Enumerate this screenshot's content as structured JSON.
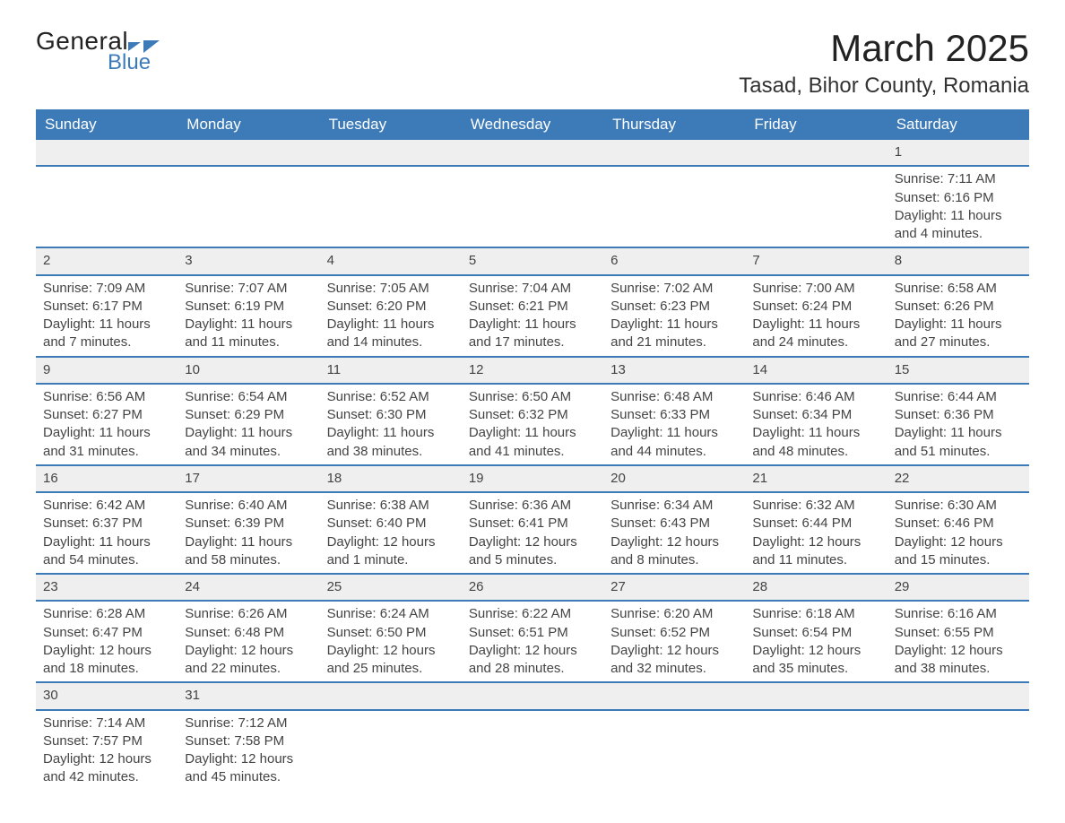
{
  "logo": {
    "text_general": "General",
    "text_blue": "Blue",
    "color_blue": "#3d7ab8"
  },
  "title": "March 2025",
  "location": "Tasad, Bihor County, Romania",
  "day_headers": [
    "Sunday",
    "Monday",
    "Tuesday",
    "Wednesday",
    "Thursday",
    "Friday",
    "Saturday"
  ],
  "weeks": [
    {
      "nums": [
        "",
        "",
        "",
        "",
        "",
        "",
        "1"
      ],
      "details": [
        "",
        "",
        "",
        "",
        "",
        "",
        "Sunrise: 7:11 AM\nSunset: 6:16 PM\nDaylight: 11 hours and 4 minutes."
      ]
    },
    {
      "nums": [
        "2",
        "3",
        "4",
        "5",
        "6",
        "7",
        "8"
      ],
      "details": [
        "Sunrise: 7:09 AM\nSunset: 6:17 PM\nDaylight: 11 hours and 7 minutes.",
        "Sunrise: 7:07 AM\nSunset: 6:19 PM\nDaylight: 11 hours and 11 minutes.",
        "Sunrise: 7:05 AM\nSunset: 6:20 PM\nDaylight: 11 hours and 14 minutes.",
        "Sunrise: 7:04 AM\nSunset: 6:21 PM\nDaylight: 11 hours and 17 minutes.",
        "Sunrise: 7:02 AM\nSunset: 6:23 PM\nDaylight: 11 hours and 21 minutes.",
        "Sunrise: 7:00 AM\nSunset: 6:24 PM\nDaylight: 11 hours and 24 minutes.",
        "Sunrise: 6:58 AM\nSunset: 6:26 PM\nDaylight: 11 hours and 27 minutes."
      ]
    },
    {
      "nums": [
        "9",
        "10",
        "11",
        "12",
        "13",
        "14",
        "15"
      ],
      "details": [
        "Sunrise: 6:56 AM\nSunset: 6:27 PM\nDaylight: 11 hours and 31 minutes.",
        "Sunrise: 6:54 AM\nSunset: 6:29 PM\nDaylight: 11 hours and 34 minutes.",
        "Sunrise: 6:52 AM\nSunset: 6:30 PM\nDaylight: 11 hours and 38 minutes.",
        "Sunrise: 6:50 AM\nSunset: 6:32 PM\nDaylight: 11 hours and 41 minutes.",
        "Sunrise: 6:48 AM\nSunset: 6:33 PM\nDaylight: 11 hours and 44 minutes.",
        "Sunrise: 6:46 AM\nSunset: 6:34 PM\nDaylight: 11 hours and 48 minutes.",
        "Sunrise: 6:44 AM\nSunset: 6:36 PM\nDaylight: 11 hours and 51 minutes."
      ]
    },
    {
      "nums": [
        "16",
        "17",
        "18",
        "19",
        "20",
        "21",
        "22"
      ],
      "details": [
        "Sunrise: 6:42 AM\nSunset: 6:37 PM\nDaylight: 11 hours and 54 minutes.",
        "Sunrise: 6:40 AM\nSunset: 6:39 PM\nDaylight: 11 hours and 58 minutes.",
        "Sunrise: 6:38 AM\nSunset: 6:40 PM\nDaylight: 12 hours and 1 minute.",
        "Sunrise: 6:36 AM\nSunset: 6:41 PM\nDaylight: 12 hours and 5 minutes.",
        "Sunrise: 6:34 AM\nSunset: 6:43 PM\nDaylight: 12 hours and 8 minutes.",
        "Sunrise: 6:32 AM\nSunset: 6:44 PM\nDaylight: 12 hours and 11 minutes.",
        "Sunrise: 6:30 AM\nSunset: 6:46 PM\nDaylight: 12 hours and 15 minutes."
      ]
    },
    {
      "nums": [
        "23",
        "24",
        "25",
        "26",
        "27",
        "28",
        "29"
      ],
      "details": [
        "Sunrise: 6:28 AM\nSunset: 6:47 PM\nDaylight: 12 hours and 18 minutes.",
        "Sunrise: 6:26 AM\nSunset: 6:48 PM\nDaylight: 12 hours and 22 minutes.",
        "Sunrise: 6:24 AM\nSunset: 6:50 PM\nDaylight: 12 hours and 25 minutes.",
        "Sunrise: 6:22 AM\nSunset: 6:51 PM\nDaylight: 12 hours and 28 minutes.",
        "Sunrise: 6:20 AM\nSunset: 6:52 PM\nDaylight: 12 hours and 32 minutes.",
        "Sunrise: 6:18 AM\nSunset: 6:54 PM\nDaylight: 12 hours and 35 minutes.",
        "Sunrise: 6:16 AM\nSunset: 6:55 PM\nDaylight: 12 hours and 38 minutes."
      ]
    },
    {
      "nums": [
        "30",
        "31",
        "",
        "",
        "",
        "",
        ""
      ],
      "details": [
        "Sunrise: 7:14 AM\nSunset: 7:57 PM\nDaylight: 12 hours and 42 minutes.",
        "Sunrise: 7:12 AM\nSunset: 7:58 PM\nDaylight: 12 hours and 45 minutes.",
        "",
        "",
        "",
        "",
        ""
      ]
    }
  ],
  "colors": {
    "header_bg": "#3d7ab8",
    "row_sep": "#3d7ab8",
    "daynum_bg": "#efefef",
    "text": "#444"
  },
  "typography": {
    "title_fontsize": 42,
    "location_fontsize": 24,
    "header_fontsize": 17,
    "body_fontsize": 15
  }
}
